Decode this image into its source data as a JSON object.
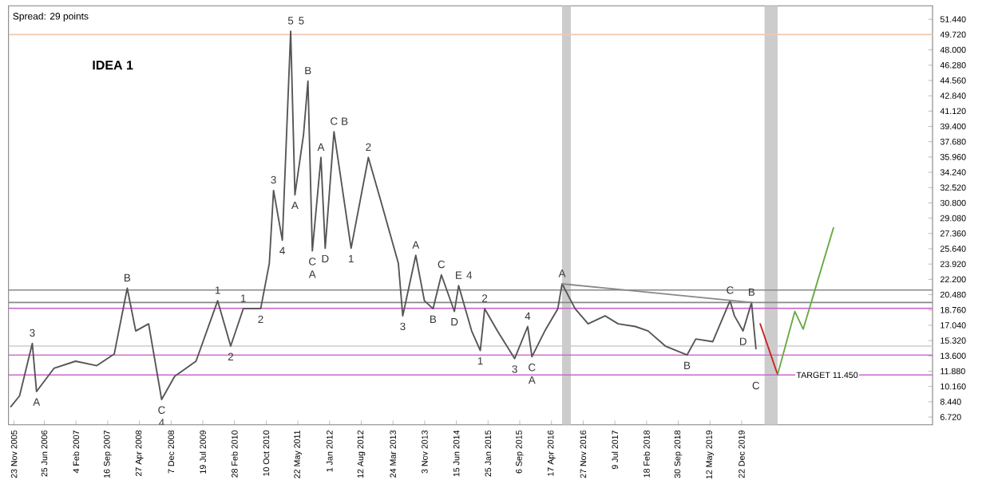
{
  "chart_data": {
    "type": "line",
    "series": [
      {
        "color": "#555555",
        "x": [
          "2005-11",
          "2006-01",
          "2006-04",
          "2006-05",
          "2006-09",
          "2007-02",
          "2007-07",
          "2007-11",
          "2008-02",
          "2008-04",
          "2008-07",
          "2008-10",
          "2009-01",
          "2009-06",
          "2009-11",
          "2010-02",
          "2010-05",
          "2010-09",
          "2010-11",
          "2010-12",
          "2011-02",
          "2011-04",
          "2011-05",
          "2011-07",
          "2011-08",
          "2011-09",
          "2011-11",
          "2011-12",
          "2012-02",
          "2012-06",
          "2012-10",
          "2013-01",
          "2013-05",
          "2013-06",
          "2013-09",
          "2013-11",
          "2014-01",
          "2014-03",
          "2014-06",
          "2014-07",
          "2014-10",
          "2014-12",
          "2015-01",
          "2015-04",
          "2015-08",
          "2015-11",
          "2015-12",
          "2016-03",
          "2016-06",
          "2016-07",
          "2016-10",
          "2017-01",
          "2017-05",
          "2017-08",
          "2017-12",
          "2018-03",
          "2018-07",
          "2018-12",
          "2019-02",
          "2019-06",
          "2019-10",
          "2019-11",
          "2020-01",
          "2020-03",
          "2020-04"
        ],
        "values": [
          7.9,
          9.1,
          15.0,
          9.6,
          12.2,
          13.0,
          12.5,
          13.8,
          21.2,
          16.4,
          17.2,
          8.7,
          11.3,
          13.0,
          19.8,
          14.7,
          18.9,
          18.9,
          24.0,
          32.2,
          26.6,
          50.1,
          31.7,
          38.5,
          44.5,
          25.4,
          35.9,
          25.7,
          38.8,
          25.7,
          35.9,
          30.8,
          24.0,
          18.1,
          24.9,
          19.8,
          18.9,
          22.7,
          18.6,
          21.5,
          16.4,
          14.2,
          18.9,
          16.4,
          13.3,
          16.9,
          13.5,
          16.4,
          18.9,
          21.7,
          18.9,
          17.2,
          18.1,
          17.2,
          16.9,
          16.4,
          14.7,
          13.7,
          15.5,
          15.2,
          19.8,
          18.1,
          16.4,
          19.6,
          14.4
        ]
      },
      {
        "color": "#888888",
        "x": [
          "2016-07",
          "2020-03"
        ],
        "values": [
          21.7,
          19.6
        ]
      },
      {
        "color": "#cc2222",
        "x": [
          "2020-05",
          "2020-09"
        ],
        "values": [
          17.2,
          11.5
        ]
      },
      {
        "color": "#66aa44",
        "x": [
          "2020-09",
          "2021-01",
          "2021-03",
          "2021-10"
        ],
        "values": [
          11.5,
          18.6,
          16.6,
          28.0
        ]
      }
    ],
    "xlim": [
      "2005-10-15",
      "2023-09-01"
    ],
    "xticks": [
      {
        "value": "2005-11-23",
        "label": "23 Nov 2005"
      },
      {
        "value": "2006-06-25",
        "label": "25 Jun 2006"
      },
      {
        "value": "2007-02-04",
        "label": "4 Feb 2007"
      },
      {
        "value": "2007-09-16",
        "label": "16 Sep 2007"
      },
      {
        "value": "2008-04-27",
        "label": "27 Apr 2008"
      },
      {
        "value": "2008-12-07",
        "label": "7 Dec 2008"
      },
      {
        "value": "2009-07-19",
        "label": "19 Jul 2009"
      },
      {
        "value": "2010-02-28",
        "label": "28 Feb 2010"
      },
      {
        "value": "2010-10-10",
        "label": "10 Oct 2010"
      },
      {
        "value": "2011-05-22",
        "label": "22 May 2011"
      },
      {
        "value": "2012-01-01",
        "label": "1 Jan 2012"
      },
      {
        "value": "2012-08-12",
        "label": "12 Aug 2012"
      },
      {
        "value": "2013-03-24",
        "label": "24 Mar 2013"
      },
      {
        "value": "2013-11-03",
        "label": "3 Nov 2013"
      },
      {
        "value": "2014-06-15",
        "label": "15 Jun 2014"
      },
      {
        "value": "2015-01-25",
        "label": "25 Jan 2015"
      },
      {
        "value": "2015-09-06",
        "label": "6 Sep 2015"
      },
      {
        "value": "2016-04-17",
        "label": "17 Apr 2016"
      },
      {
        "value": "2016-11-27",
        "label": "27 Nov 2016"
      },
      {
        "value": "2017-07-09",
        "label": "9 Jul 2017"
      },
      {
        "value": "2018-02-18",
        "label": "18 Feb 2018"
      },
      {
        "value": "2018-09-30",
        "label": "30 Sep 2018"
      },
      {
        "value": "2019-05-12",
        "label": "12 May 2019"
      },
      {
        "value": "2019-12-22",
        "label": "22 Dec 2019"
      }
    ],
    "ylim": [
      5.86,
      52.95
    ],
    "yticks": [
      {
        "value": 51.44,
        "label": "51.440"
      },
      {
        "value": 49.72,
        "label": "49.720"
      },
      {
        "value": 48.0,
        "label": "48.000"
      },
      {
        "value": 46.28,
        "label": "46.280"
      },
      {
        "value": 44.56,
        "label": "44.560"
      },
      {
        "value": 42.84,
        "label": "42.840"
      },
      {
        "value": 41.12,
        "label": "41.120"
      },
      {
        "value": 39.4,
        "label": "39.400"
      },
      {
        "value": 37.68,
        "label": "37.680"
      },
      {
        "value": 35.96,
        "label": "35.960"
      },
      {
        "value": 34.24,
        "label": "34.240"
      },
      {
        "value": 32.52,
        "label": "32.520"
      },
      {
        "value": 30.8,
        "label": "30.800"
      },
      {
        "value": 29.08,
        "label": "29.080"
      },
      {
        "value": 27.36,
        "label": "27.360"
      },
      {
        "value": 25.64,
        "label": "25.640"
      },
      {
        "value": 23.92,
        "label": "23.920"
      },
      {
        "value": 22.2,
        "label": "22.200"
      },
      {
        "value": 20.48,
        "label": "20.480"
      },
      {
        "value": 18.76,
        "label": "18.760"
      },
      {
        "value": 17.04,
        "label": "17.040"
      },
      {
        "value": 15.32,
        "label": "15.320"
      },
      {
        "value": 13.6,
        "label": "13.600"
      },
      {
        "value": 11.88,
        "label": "11.880"
      },
      {
        "value": 10.16,
        "label": "10.160"
      },
      {
        "value": 8.44,
        "label": "8.440"
      },
      {
        "value": 6.72,
        "label": "6.720"
      }
    ],
    "ref_lines": [
      {
        "axis": "y",
        "value": 49.72,
        "color": "#f0c8b0"
      },
      {
        "axis": "y",
        "value": 21.0,
        "color": "#888888"
      },
      {
        "axis": "y",
        "value": 19.6,
        "color": "#888888"
      },
      {
        "axis": "y",
        "value": 18.95,
        "color": "#cc66cc"
      },
      {
        "axis": "y",
        "value": 14.7,
        "color": "#cccccc"
      },
      {
        "axis": "y",
        "value": 13.7,
        "color": "#cc66cc"
      },
      {
        "axis": "y",
        "value": 11.45,
        "color": "#cc66cc",
        "label": "TARGET 11.450"
      }
    ],
    "bands": [
      {
        "axis": "x",
        "from": "2016-07",
        "to": "2016-09",
        "color": "#cccccc"
      },
      {
        "axis": "x",
        "from": "2020-06",
        "to": "2020-09",
        "color": "#cccccc"
      }
    ],
    "annotations": [
      "Spread: 29 points",
      "IDEA 1",
      {
        "text": "3",
        "x": "2006-04",
        "y": 15.0
      },
      {
        "text": "A",
        "x": "2006-05",
        "y": 9.6
      },
      {
        "text": "B",
        "x": "2008-02",
        "y": 21.2
      },
      {
        "text": "C",
        "x": "2008-10",
        "y": 8.7
      },
      {
        "text": "4",
        "x": "2008-10",
        "y": 8.7
      },
      {
        "text": "1",
        "x": "2009-11",
        "y": 19.8
      },
      {
        "text": "2",
        "x": "2010-02",
        "y": 14.7
      },
      {
        "text": "1",
        "x": "2010-05",
        "y": 18.9
      },
      {
        "text": "2",
        "x": "2010-09",
        "y": 18.9
      },
      {
        "text": "3",
        "x": "2010-12",
        "y": 32.2
      },
      {
        "text": "4",
        "x": "2011-02",
        "y": 26.6
      },
      {
        "text": "5",
        "x": "2011-04",
        "y": 50.1
      },
      {
        "text": "5",
        "x": "2011-04",
        "y": 50.1
      },
      {
        "text": "A",
        "x": "2011-05",
        "y": 31.7
      },
      {
        "text": "B",
        "x": "2011-08",
        "y": 44.5
      },
      {
        "text": "A",
        "x": "2011-11",
        "y": 35.9
      },
      {
        "text": "C",
        "x": "2011-09",
        "y": 25.4
      },
      {
        "text": "A",
        "x": "2011-09",
        "y": 25.4
      },
      {
        "text": "D",
        "x": "2011-12",
        "y": 25.7
      },
      {
        "text": "C",
        "x": "2012-02",
        "y": 38.8
      },
      {
        "text": "B",
        "x": "2012-02",
        "y": 38.8
      },
      {
        "text": "1",
        "x": "2012-06",
        "y": 25.7
      },
      {
        "text": "2",
        "x": "2012-10",
        "y": 35.9
      },
      {
        "text": "3",
        "x": "2013-06",
        "y": 18.1
      },
      {
        "text": "A",
        "x": "2013-09",
        "y": 24.9
      },
      {
        "text": "B",
        "x": "2014-01",
        "y": 18.9
      },
      {
        "text": "C",
        "x": "2014-03",
        "y": 22.7
      },
      {
        "text": "D",
        "x": "2014-06",
        "y": 18.6
      },
      {
        "text": "E",
        "x": "2014-07",
        "y": 21.5
      },
      {
        "text": "4",
        "x": "2014-07",
        "y": 21.5
      },
      {
        "text": "1",
        "x": "2014-12",
        "y": 14.2
      },
      {
        "text": "2",
        "x": "2015-01",
        "y": 18.9
      },
      {
        "text": "3",
        "x": "2015-08",
        "y": 13.3
      },
      {
        "text": "4",
        "x": "2015-11",
        "y": 16.9
      },
      {
        "text": "C",
        "x": "2015-12",
        "y": 13.5
      },
      {
        "text": "A",
        "x": "2015-12",
        "y": 13.5
      },
      {
        "text": "A",
        "x": "2016-07",
        "y": 21.7
      },
      {
        "text": "B",
        "x": "2018-12",
        "y": 13.7
      },
      {
        "text": "C",
        "x": "2019-10",
        "y": 19.8
      },
      {
        "text": "D",
        "x": "2020-01",
        "y": 16.4
      },
      {
        "text": "B",
        "x": "2020-03",
        "y": 19.6
      },
      {
        "text": "C",
        "x": "2020-04",
        "y": 11.45
      }
    ]
  }
}
